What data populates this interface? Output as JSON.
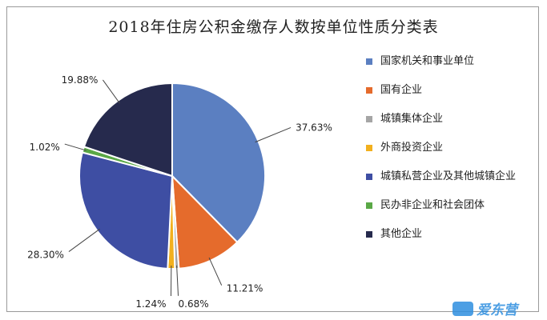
{
  "chart_data": {
    "type": "pie",
    "title": "2018年住房公积金缴存人数按单位性质分类表",
    "legend_position": "right",
    "slices": [
      {
        "name": "国家机关和事业单位",
        "value": 37.63,
        "label": "37.63%",
        "color": "#5b7fc1"
      },
      {
        "name": "国有企业",
        "value": 11.21,
        "label": "11.21%",
        "color": "#e56b2c"
      },
      {
        "name": "城镇集体企业",
        "value": 0.68,
        "label": "0.68%",
        "color": "#a5a5a5"
      },
      {
        "name": "外商投资企业",
        "value": 1.24,
        "label": "1.24%",
        "color": "#f2b01e"
      },
      {
        "name": "城镇私营企业及其他城镇企业",
        "value": 28.3,
        "label": "28.30%",
        "color": "#3e4ea3"
      },
      {
        "name": "民办非企业和社会团体",
        "value": 1.02,
        "label": "1.02%",
        "color": "#5aa846"
      },
      {
        "name": "其他企业",
        "value": 19.88,
        "label": "19.88%",
        "color": "#262a4d"
      }
    ]
  },
  "watermark": {
    "text": "爱东营"
  }
}
